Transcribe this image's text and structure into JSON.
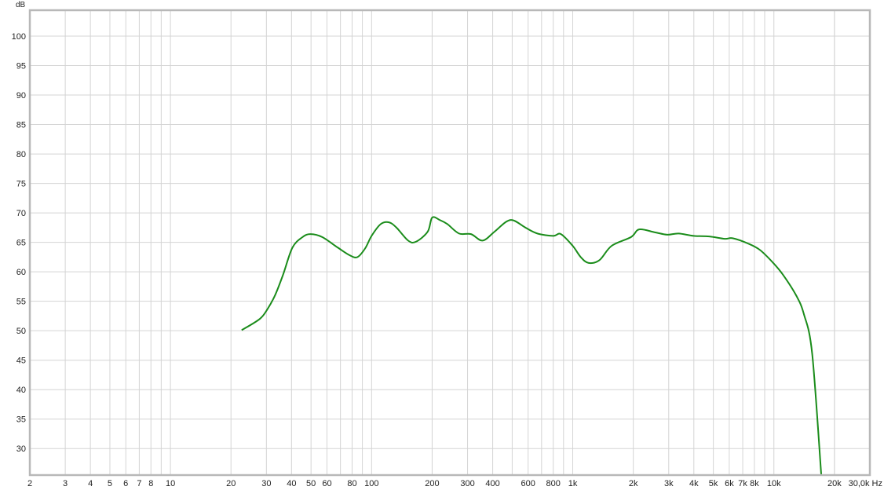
{
  "chart_data": {
    "type": "line",
    "title": "",
    "xlabel": "Hz",
    "ylabel": "dB",
    "x_scale": "log",
    "xlim": [
      2,
      30000
    ],
    "ylim": [
      25.5,
      104.4
    ],
    "grid": true,
    "x_tick_labels": [
      {
        "v": 2,
        "t": "2"
      },
      {
        "v": 3,
        "t": "3"
      },
      {
        "v": 4,
        "t": "4"
      },
      {
        "v": 5,
        "t": "5"
      },
      {
        "v": 6,
        "t": "6"
      },
      {
        "v": 7,
        "t": "7"
      },
      {
        "v": 8,
        "t": "8"
      },
      {
        "v": 10,
        "t": "10"
      },
      {
        "v": 20,
        "t": "20"
      },
      {
        "v": 30,
        "t": "30"
      },
      {
        "v": 40,
        "t": "40"
      },
      {
        "v": 50,
        "t": "50"
      },
      {
        "v": 60,
        "t": "60"
      },
      {
        "v": 80,
        "t": "80"
      },
      {
        "v": 100,
        "t": "100"
      },
      {
        "v": 200,
        "t": "200"
      },
      {
        "v": 300,
        "t": "300"
      },
      {
        "v": 400,
        "t": "400"
      },
      {
        "v": 600,
        "t": "600"
      },
      {
        "v": 800,
        "t": "800"
      },
      {
        "v": 1000,
        "t": "1k"
      },
      {
        "v": 2000,
        "t": "2k"
      },
      {
        "v": 3000,
        "t": "3k"
      },
      {
        "v": 4000,
        "t": "4k"
      },
      {
        "v": 5000,
        "t": "5k"
      },
      {
        "v": 6000,
        "t": "6k"
      },
      {
        "v": 7000,
        "t": "7k"
      },
      {
        "v": 8000,
        "t": "8k"
      },
      {
        "v": 10000,
        "t": "10k"
      },
      {
        "v": 20000,
        "t": "20k"
      },
      {
        "v": 30000,
        "t": "30,0k Hz"
      }
    ],
    "y_ticks": [
      30,
      35,
      40,
      45,
      50,
      55,
      60,
      65,
      70,
      75,
      80,
      85,
      90,
      95,
      100
    ],
    "y_unit_label": "dB",
    "series": [
      {
        "color": "#1a8c1a",
        "x": [
          22.6,
          27.8,
          30.4,
          33.2,
          36.3,
          40.4,
          45.4,
          49.7,
          56.8,
          68,
          77.9,
          85.1,
          93,
          100,
          111,
          122,
          133,
          152,
          166,
          190,
          200,
          218,
          238,
          272,
          312,
          356,
          408,
          467,
          510,
          582,
          667,
          800,
          873,
          1000,
          1096,
          1200,
          1360,
          1560,
          1950,
          2140,
          2560,
          2950,
          3360,
          3990,
          4770,
          5700,
          6240,
          7440,
          8530,
          9930,
          11100,
          12900,
          14100,
          15500,
          17200
        ],
        "y": [
          50.1,
          52,
          53.7,
          56.1,
          59.5,
          64.1,
          65.9,
          66.4,
          65.9,
          64.1,
          62.8,
          62.5,
          64,
          66.1,
          68.1,
          68.4,
          67.5,
          65.3,
          65.1,
          66.8,
          69.2,
          68.8,
          68.1,
          66.5,
          66.4,
          65.3,
          66.8,
          68.5,
          68.7,
          67.5,
          66.5,
          66.1,
          66.4,
          64.4,
          62.5,
          61.5,
          62,
          64.4,
          65.9,
          67.2,
          66.7,
          66.3,
          66.5,
          66.1,
          66,
          65.6,
          65.7,
          64.8,
          63.7,
          61.5,
          59.5,
          56,
          52.8,
          46.1,
          25.5
        ]
      }
    ]
  }
}
